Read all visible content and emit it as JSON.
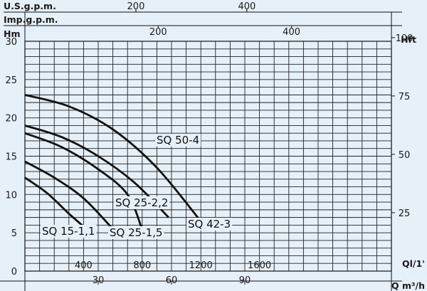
{
  "chart_data": {
    "type": "line",
    "xlabel_primary": "Ql/1'",
    "xlabel_m3h": "Q m³/h",
    "xlabel_usgpm": "U.S.g.p.m.",
    "xlabel_impgpm": "Imp.g.p.m.",
    "ylabel_left": "Hm",
    "ylabel_right": "Hft",
    "xlim": [
      0,
      2500
    ],
    "ylim": [
      0,
      30
    ],
    "x_ticks_lmin": [
      400,
      800,
      1200,
      1600
    ],
    "x_ticks_m3h": [
      30,
      60,
      90
    ],
    "x_ticks_usgpm": [
      200,
      400
    ],
    "x_ticks_impgpm": [
      200,
      400
    ],
    "y_ticks_left": [
      0,
      5,
      10,
      15,
      20,
      25,
      30
    ],
    "y_ticks_right": [
      25,
      50,
      75,
      100
    ],
    "series": [
      {
        "name": "SQ 15-1,1",
        "x": [
          0,
          150,
          300,
          420
        ],
        "y": [
          12.2,
          10.2,
          7.5,
          5.5
        ]
      },
      {
        "name": "SQ 25-1,5",
        "x": [
          0,
          200,
          400,
          600
        ],
        "y": [
          14.3,
          12.2,
          9.5,
          5.5
        ]
      },
      {
        "name": "SQ 25-2,2",
        "x": [
          0,
          250,
          500,
          700,
          800
        ],
        "y": [
          18,
          16.2,
          13.3,
          10,
          5.4
        ]
      },
      {
        "name": "SQ 42-3",
        "x": [
          0,
          250,
          500,
          750,
          980
        ],
        "y": [
          19,
          17.5,
          15,
          11.5,
          7
        ]
      },
      {
        "name": "SQ 50-4",
        "x": [
          0,
          300,
          600,
          900,
          1200
        ],
        "y": [
          23,
          21.5,
          18.5,
          13.5,
          6.5
        ]
      }
    ],
    "curve_labels": [
      "SQ 50-4",
      "SQ 25-2,2",
      "SQ 42-3",
      "SQ 15-1,1",
      "SQ 25-1,5"
    ]
  }
}
